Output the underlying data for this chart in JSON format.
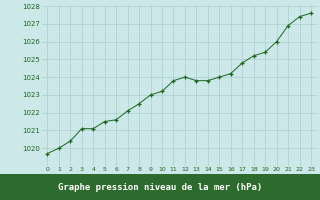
{
  "x": [
    0,
    1,
    2,
    3,
    4,
    5,
    6,
    7,
    8,
    9,
    10,
    11,
    12,
    13,
    14,
    15,
    16,
    17,
    18,
    19,
    20,
    21,
    22,
    23
  ],
  "y": [
    1019.7,
    1020.0,
    1020.4,
    1021.1,
    1021.1,
    1021.5,
    1021.6,
    1022.1,
    1022.5,
    1023.0,
    1023.2,
    1023.8,
    1024.0,
    1023.8,
    1023.8,
    1024.0,
    1024.2,
    1024.8,
    1025.2,
    1025.4,
    1026.0,
    1026.9,
    1027.4,
    1027.6
  ],
  "ylim": [
    1019,
    1028
  ],
  "yticks": [
    1020,
    1021,
    1022,
    1023,
    1024,
    1025,
    1026,
    1027,
    1028
  ],
  "xticks": [
    0,
    1,
    2,
    3,
    4,
    5,
    6,
    7,
    8,
    9,
    10,
    11,
    12,
    13,
    14,
    15,
    16,
    17,
    18,
    19,
    20,
    21,
    22,
    23
  ],
  "line_color": "#1a6620",
  "marker": "+",
  "bg_color": "#cce8e8",
  "grid_color": "#aacece",
  "tick_color": "#1a6620",
  "xlabel": "Graphe pression niveau de la mer (hPa)",
  "xlabel_bar_color": "#2d6a2d",
  "xlabel_text_color": "#ffffff"
}
